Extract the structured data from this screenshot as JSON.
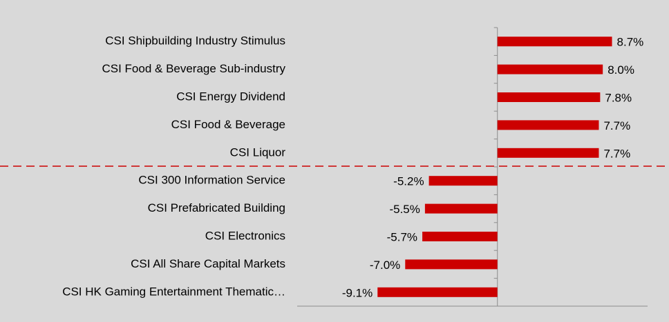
{
  "chart_data": {
    "type": "bar",
    "categories": [
      "CSI Shipbuilding Industry Stimulus",
      "CSI Food & Beverage Sub-industry",
      "CSI Energy Dividend",
      "CSI Food & Beverage",
      "CSI Liquor",
      "CSI 300 Information Service",
      "CSI Prefabricated Building",
      "CSI Electronics",
      "CSI All Share Capital Markets",
      "CSI HK Gaming Entertainment Thematic…"
    ],
    "values": [
      8.7,
      8.0,
      7.8,
      7.7,
      7.7,
      -5.2,
      -5.5,
      -5.7,
      -7.0,
      -9.1
    ],
    "value_labels": [
      "8.7%",
      "8.0%",
      "7.8%",
      "7.7%",
      "7.7%",
      "-5.2%",
      "-5.5%",
      "-5.7%",
      "-7.0%",
      "-9.1%"
    ],
    "color": "#cc0000",
    "xlim": [
      -15.2,
      11.4
    ]
  }
}
